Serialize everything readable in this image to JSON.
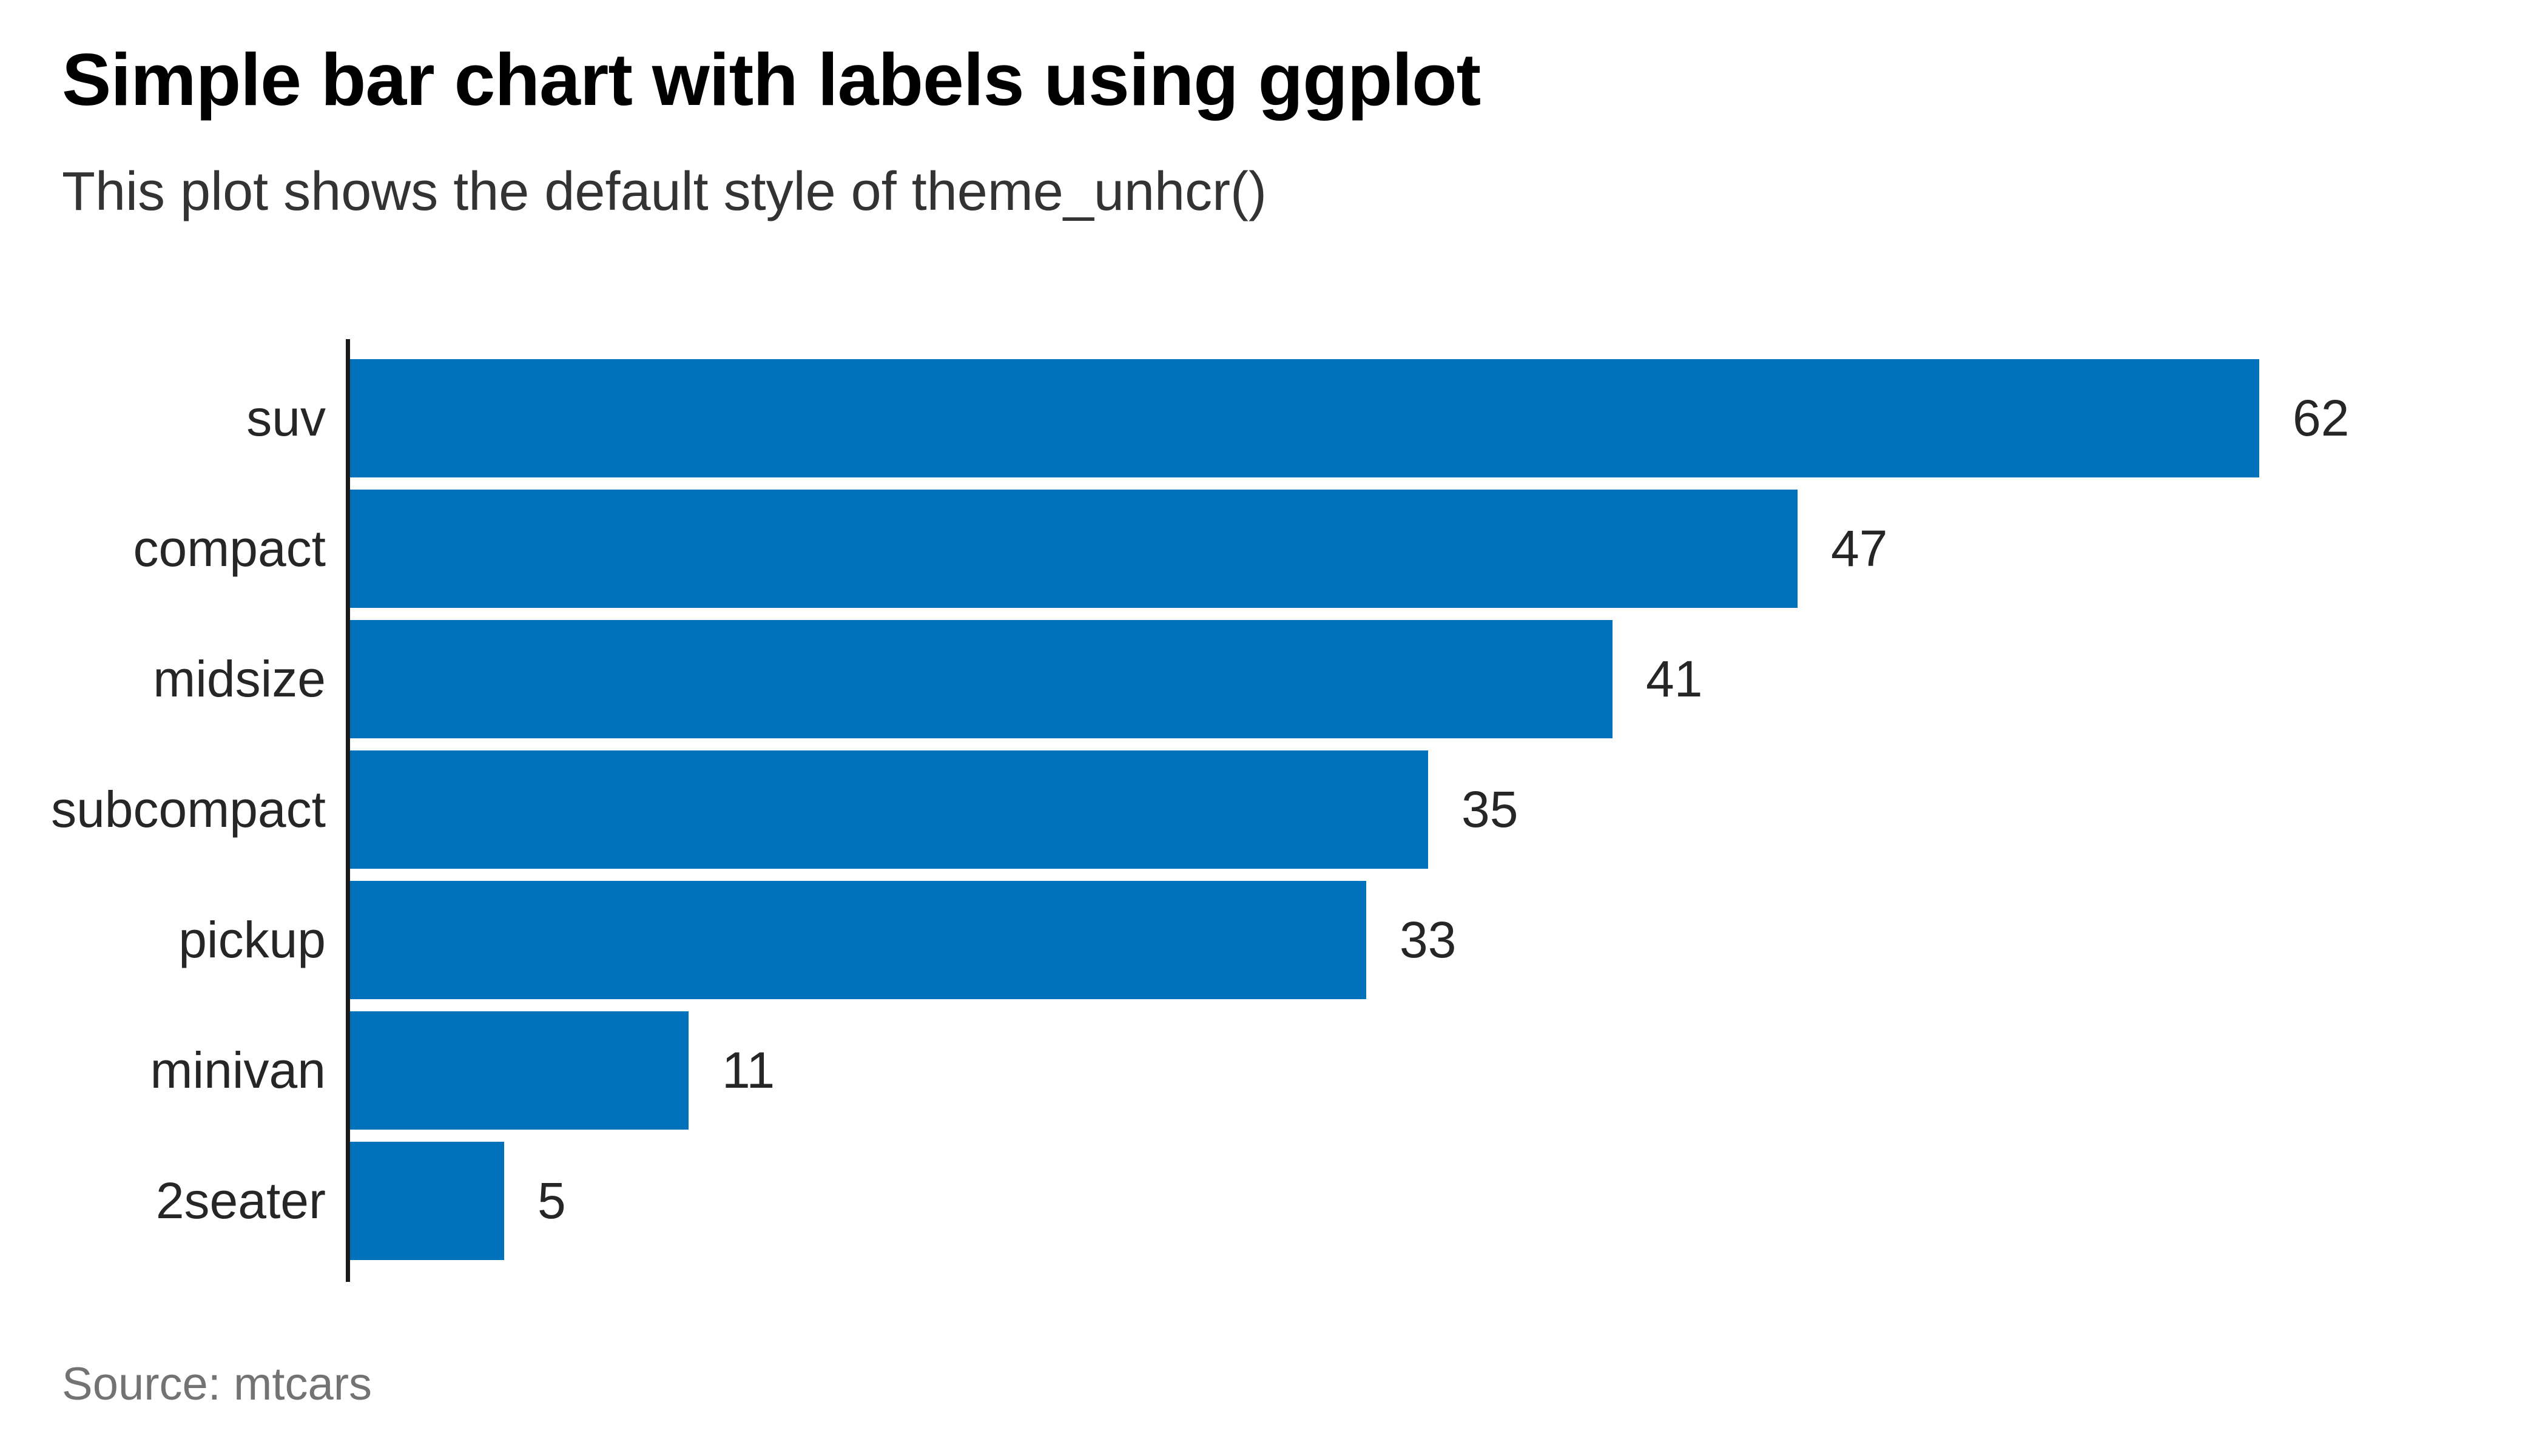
{
  "header": {
    "title": "Simple bar chart with labels using ggplot",
    "subtitle": "This plot shows the default style of theme_unhcr()"
  },
  "footer": {
    "source": "Source: mtcars"
  },
  "colors": {
    "background": "#ffffff",
    "bar": "#0072BC",
    "title": "#000000",
    "subtitle": "#333333",
    "axis_text": "#262626",
    "axis_line": "#1a1a1a",
    "source_text": "#737373"
  },
  "chart_data": {
    "type": "bar",
    "orientation": "horizontal",
    "title": "Simple bar chart with labels using ggplot",
    "subtitle": "This plot shows the default style of theme_unhcr()",
    "source": "Source: mtcars",
    "categories": [
      "suv",
      "compact",
      "midsize",
      "subcompact",
      "pickup",
      "minivan",
      "2seater"
    ],
    "values": [
      62,
      47,
      41,
      35,
      33,
      11,
      5
    ],
    "xlabel": "",
    "ylabel": "",
    "xlim": [
      0,
      62
    ],
    "grid": false,
    "legend": false,
    "value_labels_shown": true,
    "bar_color": "#0072BC"
  }
}
